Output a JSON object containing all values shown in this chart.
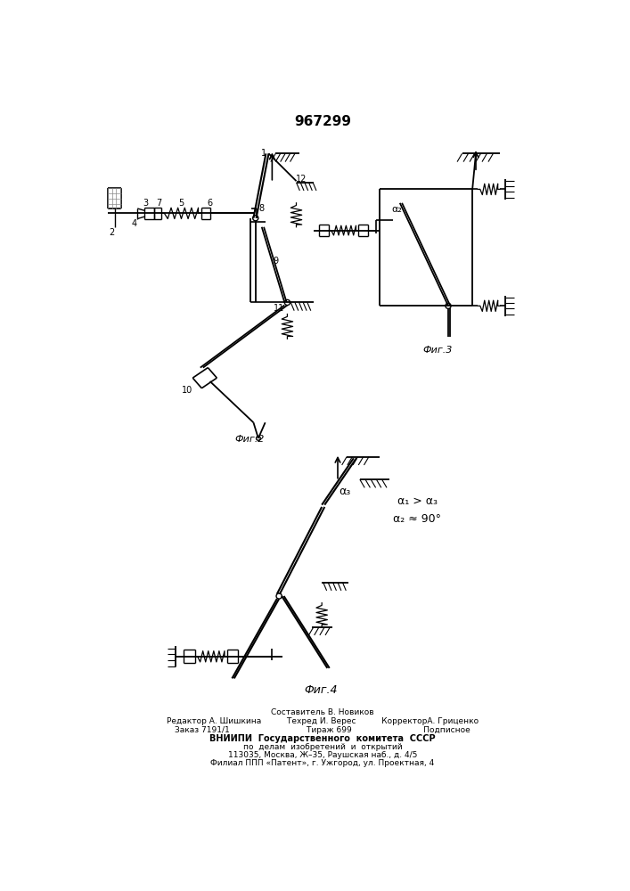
{
  "title": "967299",
  "background_color": "#ffffff",
  "line_color": "#000000",
  "footer_lines": [
    "Составитель В. Новиков",
    "Редактор А. Шишкина          Техред И. Верес          КорректорА. Гриценко",
    "Заказ 7191/1                              Тираж 699                            Подписное",
    "ВНИИПИ  Государственного  комитета  СССР",
    "по  делам  изобретений  и  открытий",
    "113035, Москва, Ж–35, Раушская наб., д. 4/5",
    "Филиал ППП «Патент», г. Ужгород, ул. Проектная, 4"
  ]
}
